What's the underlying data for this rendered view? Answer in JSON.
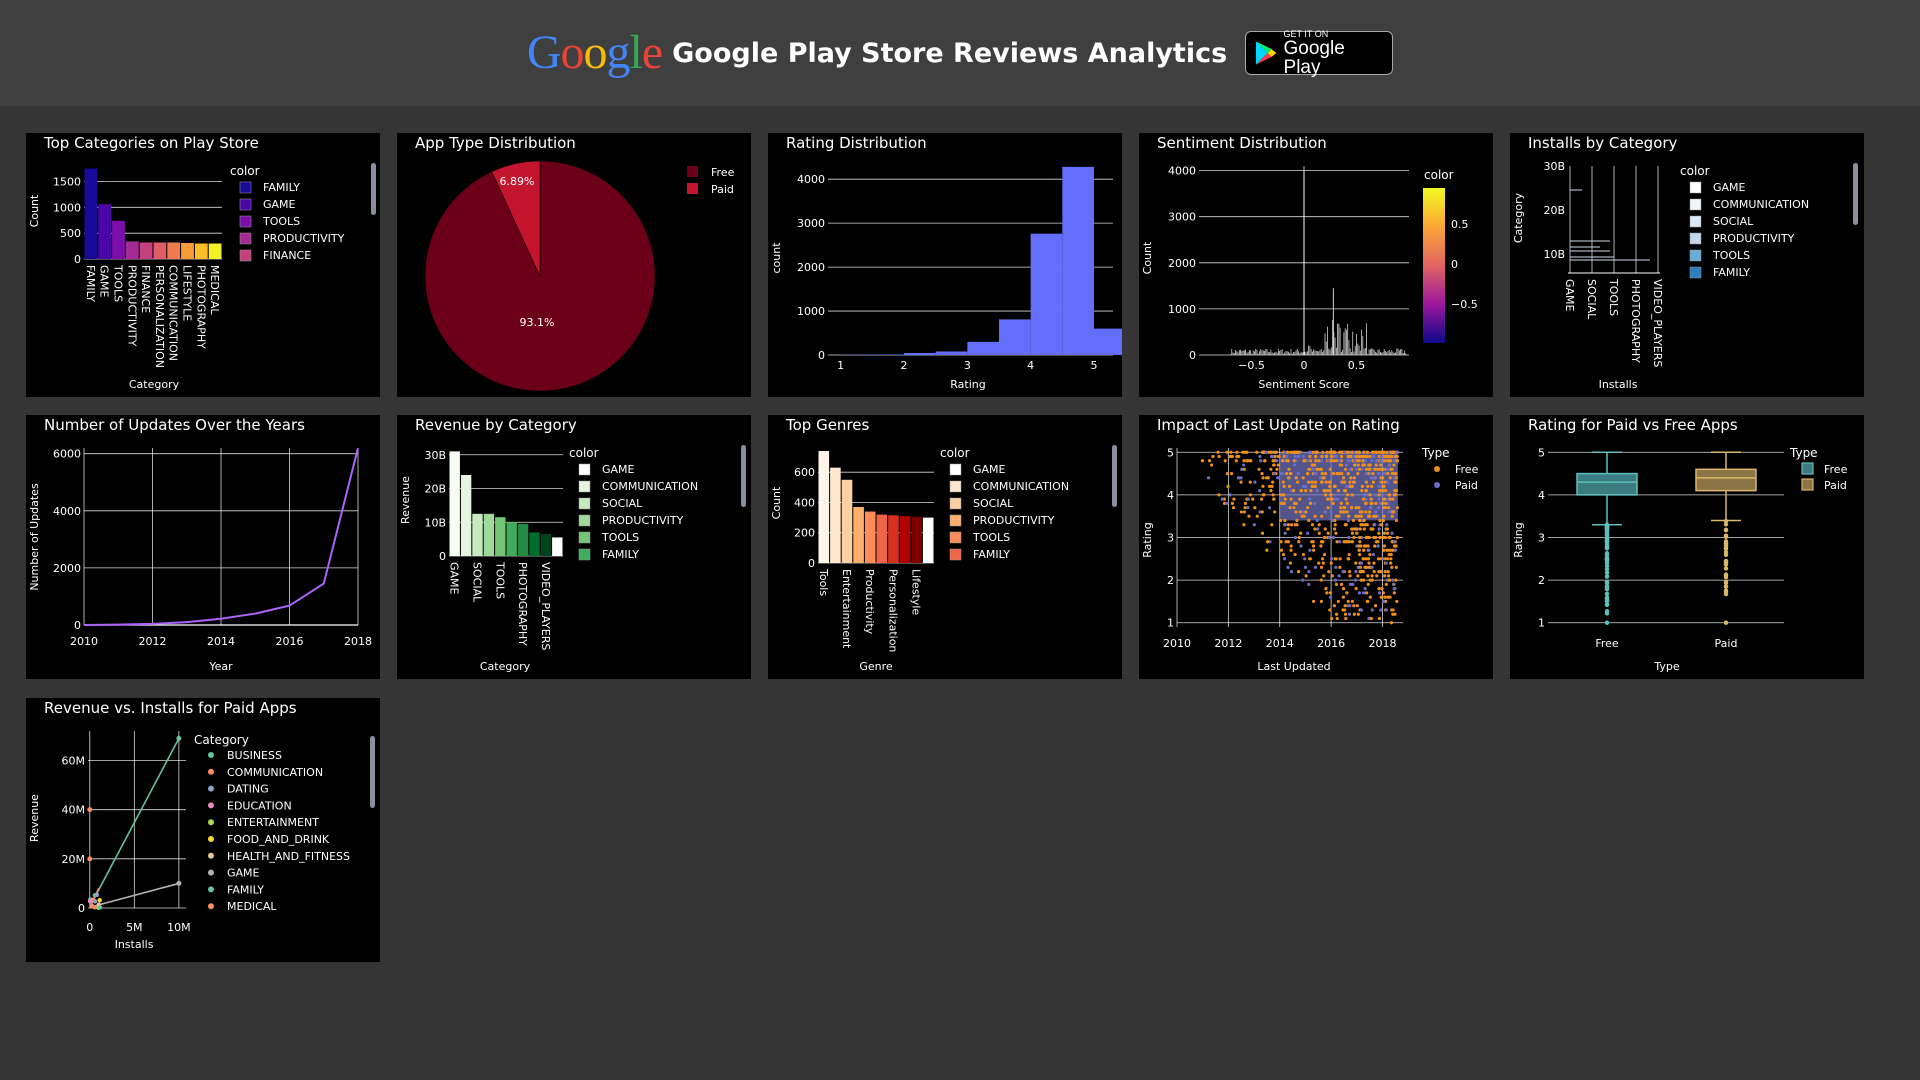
{
  "header": {
    "logo_letters": [
      {
        "ch": "G",
        "color": "#4285F4"
      },
      {
        "ch": "o",
        "color": "#EA4335"
      },
      {
        "ch": "o",
        "color": "#FBBC05"
      },
      {
        "ch": "g",
        "color": "#4285F4"
      },
      {
        "ch": "l",
        "color": "#34A853"
      },
      {
        "ch": "e",
        "color": "#EA4335"
      }
    ],
    "title": "Google Play Store Reviews Analytics",
    "badge_small": "GET IT ON",
    "badge_big": "Google Play"
  },
  "chart_data": [
    {
      "id": "top_categories",
      "type": "bar",
      "title": "Top Categories on Play Store",
      "xlabel": "Category",
      "ylabel": "Count",
      "categories": [
        "FAMILY",
        "GAME",
        "TOOLS",
        "PRODUCTIVITY",
        "FINANCE",
        "PERSONALIZATION",
        "COMMUNICATION",
        "LIFESTYLE",
        "PHOTOGRAPHY",
        "MEDICAL"
      ],
      "values": [
        1750,
        1060,
        740,
        340,
        320,
        320,
        320,
        310,
        300,
        300
      ],
      "ylim": [
        0,
        1800
      ],
      "yticks": [
        0,
        500,
        1000,
        1500
      ],
      "legend_title": "color",
      "legend": [
        "FAMILY",
        "GAME",
        "TOOLS",
        "PRODUCTIVITY",
        "FINANCE"
      ],
      "colors": [
        "#1a0a9a",
        "#4b06a8",
        "#7a0ea8",
        "#a42a94",
        "#c5417e",
        "#dd5c66",
        "#ee7a4e",
        "#f89b39",
        "#fdbd29",
        "#f2f027"
      ]
    },
    {
      "id": "app_type",
      "type": "pie",
      "title": "App Type Distribution",
      "labels": [
        "Free",
        "Paid"
      ],
      "values": [
        93.1,
        6.89
      ],
      "display": [
        "93.1%",
        "6.89%"
      ],
      "colors": [
        "#6b0018",
        "#c4152f"
      ]
    },
    {
      "id": "rating_dist",
      "type": "bar",
      "title": "Rating Distribution",
      "xlabel": "Rating",
      "ylabel": "count",
      "bins": [
        [
          1,
          1.5,
          8
        ],
        [
          1.5,
          2,
          12
        ],
        [
          2,
          2.5,
          45
        ],
        [
          2.5,
          3,
          80
        ],
        [
          3,
          3.5,
          300
        ],
        [
          3.5,
          4,
          810
        ],
        [
          4,
          4.5,
          2760
        ],
        [
          4.5,
          5,
          4280
        ],
        [
          5,
          5.5,
          600
        ]
      ],
      "xlim": [
        0.8,
        5.3
      ],
      "xticks": [
        1,
        2,
        3,
        4,
        5
      ],
      "ylim": [
        0,
        4300
      ],
      "yticks": [
        0,
        1000,
        2000,
        3000,
        4000
      ],
      "color": "#636efa"
    },
    {
      "id": "sentiment",
      "type": "bar",
      "title": "Sentiment Distribution",
      "xlabel": "Sentiment Score",
      "ylabel": "Count",
      "xlim": [
        -1,
        1
      ],
      "xticks": [
        -0.5,
        0,
        0.5
      ],
      "ylim": [
        0,
        4100
      ],
      "yticks": [
        0,
        1000,
        2000,
        3000,
        4000
      ],
      "spike_x": 0,
      "spike_y": 4000,
      "legend_title": "color",
      "colorbar_ticks": [
        0.5,
        0,
        -0.5
      ]
    },
    {
      "id": "installs_category",
      "type": "bar",
      "title": "Installs by Category",
      "xlabel": "Installs",
      "ylabel": "Category",
      "categories": [
        "GAME",
        "SOCIAL",
        "TOOLS",
        "PHOTOGRAPHY",
        "VIDEO_PLAYERS"
      ],
      "yticks": [
        "10B",
        "20B",
        "30B"
      ],
      "legend_title": "color",
      "legend": [
        "GAME",
        "COMMUNICATION",
        "SOCIAL",
        "PRODUCTIVITY",
        "TOOLS",
        "FAMILY"
      ],
      "colors": [
        "#ffffff",
        "#f0f6fc",
        "#dce9f6",
        "#bfd8ec",
        "#6aaed6",
        "#2e7ebc"
      ]
    },
    {
      "id": "updates_years",
      "type": "line",
      "title": "Number of Updates Over the Years",
      "xlabel": "Year",
      "ylabel": "Number of Updates",
      "x": [
        2010,
        2011,
        2012,
        2013,
        2014,
        2015,
        2016,
        2017,
        2018
      ],
      "y": [
        2,
        15,
        40,
        100,
        220,
        400,
        680,
        1450,
        6200
      ],
      "xticks": [
        2010,
        2012,
        2014,
        2016,
        2018
      ],
      "xlim": [
        2010,
        2018
      ],
      "ylim": [
        0,
        6200
      ],
      "yticks": [
        0,
        2000,
        4000,
        6000
      ],
      "color": "#ab63fa"
    },
    {
      "id": "revenue_category",
      "type": "bar",
      "title": "Revenue by Category",
      "xlabel": "Category",
      "ylabel": "Revenue",
      "tick_categories": [
        "GAME",
        "SOCIAL",
        "TOOLS",
        "PHOTOGRAPHY",
        "VIDEO_PLAYERS"
      ],
      "values": [
        31,
        24,
        12.5,
        12.5,
        11.5,
        10,
        9.5,
        7,
        6.5,
        5.5
      ],
      "ylim": [
        0,
        32
      ],
      "yticks": [
        "0",
        "10B",
        "20B",
        "30B"
      ],
      "legend_title": "color",
      "legend": [
        "GAME",
        "COMMUNICATION",
        "SOCIAL",
        "PRODUCTIVITY",
        "TOOLS",
        "FAMILY"
      ],
      "colors": [
        "#f7fcf5",
        "#e5f5e0",
        "#c7e9c0",
        "#a1d99b",
        "#74c476",
        "#41ab5d",
        "#238b45",
        "#006d2c",
        "#00441b",
        "#ffffff"
      ]
    },
    {
      "id": "top_genres",
      "type": "bar",
      "title": "Top Genres",
      "xlabel": "Genre",
      "ylabel": "Count",
      "tick_categories": [
        "Tools",
        "Entertainment",
        "Productivity",
        "Personalization",
        "Lifestyle"
      ],
      "values": [
        740,
        630,
        550,
        370,
        340,
        320,
        315,
        310,
        305,
        300
      ],
      "ylim": [
        0,
        760
      ],
      "yticks": [
        0,
        200,
        400,
        600
      ],
      "legend_title": "color",
      "legend": [
        "GAME",
        "COMMUNICATION",
        "SOCIAL",
        "PRODUCTIVITY",
        "TOOLS",
        "FAMILY"
      ],
      "colors": [
        "#fff5eb",
        "#fee6ce",
        "#fdd0a2",
        "#fdae6b",
        "#fc8d59",
        "#ef6548",
        "#d7301f",
        "#b30000",
        "#7f0000",
        "#ffffff"
      ]
    },
    {
      "id": "last_update",
      "type": "scatter",
      "title": "Impact of Last Update on Rating",
      "xlabel": "Last Updated",
      "ylabel": "Rating",
      "xticks": [
        2010,
        2012,
        2014,
        2016,
        2018
      ],
      "yticks": [
        1,
        2,
        3,
        4,
        5
      ],
      "xlim": [
        2010,
        2018.8
      ],
      "ylim": [
        0.9,
        5.1
      ],
      "legend_title": "Type",
      "series": [
        {
          "name": "Free",
          "color": "#ef8f1a"
        },
        {
          "name": "Paid",
          "color": "#6b6ec9"
        }
      ]
    },
    {
      "id": "paid_free_rating",
      "type": "box",
      "title": "Rating for Paid vs Free Apps",
      "xlabel": "Type",
      "ylabel": "Rating",
      "categories": [
        "Free",
        "Paid"
      ],
      "yticks": [
        1,
        2,
        3,
        4,
        5
      ],
      "ylim": [
        0.9,
        5.1
      ],
      "boxes": [
        {
          "name": "Free",
          "q1": 4.0,
          "median": 4.3,
          "q3": 4.5,
          "lo": 3.3,
          "hi": 5.0,
          "color": "#5fbfbf",
          "fill": "#3c7c80"
        },
        {
          "name": "Paid",
          "q1": 4.1,
          "median": 4.4,
          "q3": 4.6,
          "lo": 3.4,
          "hi": 5.0,
          "color": "#d9b86a",
          "fill": "#8b7445"
        }
      ],
      "legend_title": "Type"
    },
    {
      "id": "revenue_installs",
      "type": "scatter",
      "title": "Revenue vs. Installs for Paid Apps",
      "xlabel": "Installs",
      "ylabel": "Revenue",
      "xticks": [
        "0",
        "5M",
        "10M"
      ],
      "yticks": [
        "0",
        "20M",
        "40M",
        "60M"
      ],
      "legend_title": "Category",
      "legend": [
        "BUSINESS",
        "COMMUNICATION",
        "DATING",
        "EDUCATION",
        "ENTERTAINMENT",
        "FOOD_AND_DRINK",
        "HEALTH_AND_FITNESS",
        "GAME",
        "FAMILY",
        "MEDICAL"
      ],
      "colors": [
        "#66c2a5",
        "#fc8d62",
        "#8da0cb",
        "#e78ac3",
        "#a6d854",
        "#ffd92f",
        "#e5c494",
        "#b3b3b3",
        "#66c2a5",
        "#fc8d62"
      ]
    }
  ]
}
